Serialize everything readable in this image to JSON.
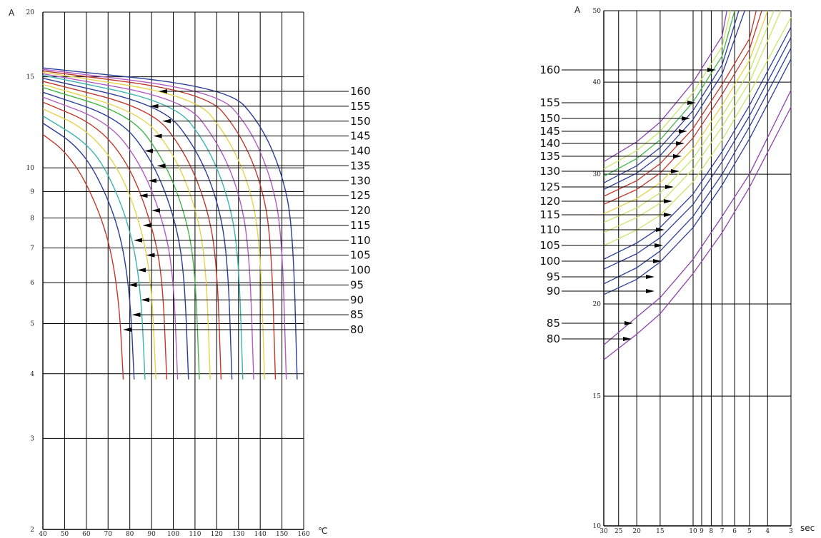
{
  "chart_data": [
    {
      "type": "line",
      "title": "",
      "ylabel": "A",
      "xlabel": "℃",
      "y_scale": "log",
      "ylim": [
        2,
        20
      ],
      "xlim": [
        40,
        160
      ],
      "y_ticks": [
        "2",
        "3",
        "4",
        "5",
        "6",
        "7",
        "8",
        "9",
        "10",
        "15",
        "20"
      ],
      "x_ticks": [
        "40",
        "50",
        "60",
        "70",
        "80",
        "90",
        "100",
        "110",
        "120",
        "130",
        "140",
        "150",
        "160"
      ],
      "grid": true,
      "series": [
        {
          "name": "80",
          "color": "#c0392b",
          "values": [
            [
              40,
              11.6
            ],
            [
              50,
              10.8
            ],
            [
              60,
              9.4
            ],
            [
              70,
              7.4
            ],
            [
              75,
              5.6
            ],
            [
              77,
              3.9
            ]
          ]
        },
        {
          "name": "85",
          "color": "#2c3e99",
          "values": [
            [
              40,
              12.2
            ],
            [
              55,
              11.1
            ],
            [
              65,
              9.7
            ],
            [
              75,
              7.7
            ],
            [
              80,
              5.8
            ],
            [
              82,
              3.9
            ]
          ]
        },
        {
          "name": "90",
          "color": "#3ab5b0",
          "values": [
            [
              40,
              12.6
            ],
            [
              60,
              11.2
            ],
            [
              70,
              9.8
            ],
            [
              80,
              7.7
            ],
            [
              85,
              5.9
            ],
            [
              87,
              3.9
            ]
          ]
        },
        {
          "name": "95",
          "color": "#e6d34a",
          "values": [
            [
              40,
              13.0
            ],
            [
              60,
              11.9
            ],
            [
              75,
              10.0
            ],
            [
              85,
              7.8
            ],
            [
              90,
              6.0
            ],
            [
              92,
              3.9
            ]
          ]
        },
        {
          "name": "100",
          "color": "#c0392b",
          "values": [
            [
              40,
              13.4
            ],
            [
              65,
              12.1
            ],
            [
              80,
              10.1
            ],
            [
              90,
              7.8
            ],
            [
              95,
              6.2
            ],
            [
              97,
              3.9
            ]
          ]
        },
        {
          "name": "105",
          "color": "#b05cc4",
          "values": [
            [
              40,
              13.7
            ],
            [
              70,
              12.3
            ],
            [
              85,
              10.2
            ],
            [
              95,
              8.0
            ],
            [
              100,
              6.3
            ],
            [
              102,
              3.9
            ]
          ]
        },
        {
          "name": "110",
          "color": "#2c3e99",
          "values": [
            [
              40,
              14.0
            ],
            [
              75,
              12.5
            ],
            [
              90,
              10.4
            ],
            [
              100,
              8.2
            ],
            [
              105,
              6.4
            ],
            [
              107,
              3.9
            ]
          ]
        },
        {
          "name": "115",
          "color": "#43b649",
          "values": [
            [
              40,
              14.3
            ],
            [
              80,
              12.7
            ],
            [
              95,
              10.5
            ],
            [
              105,
              8.3
            ],
            [
              110,
              6.5
            ],
            [
              112,
              3.9
            ]
          ]
        },
        {
          "name": "120",
          "color": "#e6d34a",
          "values": [
            [
              40,
              14.5
            ],
            [
              85,
              12.8
            ],
            [
              100,
              10.7
            ],
            [
              110,
              8.5
            ],
            [
              115,
              6.6
            ],
            [
              117,
              3.9
            ]
          ]
        },
        {
          "name": "125",
          "color": "#c0392b",
          "values": [
            [
              40,
              14.7
            ],
            [
              90,
              13.0
            ],
            [
              105,
              10.8
            ],
            [
              115,
              8.6
            ],
            [
              120,
              6.7
            ],
            [
              122,
              3.9
            ]
          ]
        },
        {
          "name": "130",
          "color": "#2c3e99",
          "values": [
            [
              40,
              14.9
            ],
            [
              95,
              13.2
            ],
            [
              110,
              11.0
            ],
            [
              120,
              8.8
            ],
            [
              125,
              6.8
            ],
            [
              127,
              3.9
            ]
          ]
        },
        {
          "name": "135",
          "color": "#3ab5b0",
          "values": [
            [
              40,
              15.1
            ],
            [
              100,
              13.4
            ],
            [
              115,
              11.2
            ],
            [
              125,
              8.9
            ],
            [
              130,
              6.9
            ],
            [
              132,
              3.9
            ]
          ]
        },
        {
          "name": "140",
          "color": "#b05cc4",
          "values": [
            [
              40,
              15.2
            ],
            [
              105,
              13.6
            ],
            [
              120,
              11.3
            ],
            [
              130,
              9.1
            ],
            [
              135,
              7.0
            ],
            [
              137,
              3.9
            ]
          ]
        },
        {
          "name": "145",
          "color": "#e6d34a",
          "values": [
            [
              40,
              15.3
            ],
            [
              110,
              13.8
            ],
            [
              125,
              11.5
            ],
            [
              135,
              9.3
            ],
            [
              140,
              7.2
            ],
            [
              142,
              3.9
            ]
          ]
        },
        {
          "name": "150",
          "color": "#c0392b",
          "values": [
            [
              40,
              15.4
            ],
            [
              115,
              14.0
            ],
            [
              130,
              11.8
            ],
            [
              140,
              9.5
            ],
            [
              145,
              7.4
            ],
            [
              147,
              3.9
            ]
          ]
        },
        {
          "name": "155",
          "color": "#b05cc4",
          "values": [
            [
              40,
              15.5
            ],
            [
              120,
              14.1
            ],
            [
              135,
              12.0
            ],
            [
              145,
              9.6
            ],
            [
              150,
              7.5
            ],
            [
              152,
              3.9
            ]
          ]
        },
        {
          "name": "160",
          "color": "#2c3e99",
          "values": [
            [
              40,
              15.6
            ],
            [
              125,
              14.3
            ],
            [
              140,
              12.2
            ],
            [
              150,
              9.8
            ],
            [
              155,
              7.7
            ],
            [
              157,
              3.9
            ]
          ]
        }
      ]
    },
    {
      "type": "line",
      "title": "",
      "ylabel": "A",
      "xlabel": "sec",
      "y_scale": "log",
      "x_scale": "log",
      "x_reversed": true,
      "ylim": [
        10,
        50
      ],
      "xlim": [
        30,
        3
      ],
      "y_ticks": [
        "10",
        "15",
        "20",
        "30",
        "40",
        "50"
      ],
      "x_ticks": [
        "30",
        "25",
        "20",
        "15",
        "10",
        "9",
        "8",
        "7",
        "6",
        "5",
        "4",
        "3"
      ],
      "grid": true,
      "series": [
        {
          "name": "80",
          "color": "#8e44ad",
          "values": [
            [
              30,
              16.8
            ],
            [
              20,
              18.2
            ],
            [
              15,
              19.4
            ],
            [
              10,
              22.0
            ],
            [
              7,
              25.0
            ],
            [
              5,
              28.8
            ],
            [
              3,
              37.0
            ]
          ]
        },
        {
          "name": "85",
          "color": "#8e44ad",
          "values": [
            [
              30,
              17.6
            ],
            [
              20,
              19.2
            ],
            [
              15,
              20.4
            ],
            [
              10,
              23.0
            ],
            [
              7,
              26.3
            ],
            [
              5,
              30.0
            ],
            [
              3,
              39.0
            ]
          ]
        },
        {
          "name": "90",
          "color": "#2c3e99",
          "values": [
            [
              30,
              20.6
            ],
            [
              20,
              21.6
            ],
            [
              15,
              22.8
            ],
            [
              10,
              25.4
            ],
            [
              7,
              29.0
            ],
            [
              5,
              33.5
            ],
            [
              3,
              43.0
            ]
          ]
        },
        {
          "name": "95",
          "color": "#2c3e99",
          "values": [
            [
              30,
              21.3
            ],
            [
              20,
              22.4
            ],
            [
              15,
              23.6
            ],
            [
              10,
              26.3
            ],
            [
              7,
              30.0
            ],
            [
              5,
              34.8
            ],
            [
              3,
              44.5
            ]
          ]
        },
        {
          "name": "100",
          "color": "#2c3e99",
          "values": [
            [
              30,
              22.3
            ],
            [
              20,
              23.4
            ],
            [
              15,
              24.6
            ],
            [
              10,
              27.3
            ],
            [
              7,
              31.2
            ],
            [
              5,
              36.0
            ],
            [
              3,
              46.0
            ]
          ]
        },
        {
          "name": "105",
          "color": "#2c3e99",
          "values": [
            [
              30,
              23.0
            ],
            [
              20,
              24.2
            ],
            [
              15,
              25.4
            ],
            [
              10,
              28.2
            ],
            [
              7,
              32.2
            ],
            [
              5,
              37.2
            ],
            [
              3,
              47.5
            ]
          ]
        },
        {
          "name": "110",
          "color": "#c7e86a",
          "values": [
            [
              30,
              24.0
            ],
            [
              20,
              25.2
            ],
            [
              15,
              26.4
            ],
            [
              10,
              29.3
            ],
            [
              7,
              33.4
            ],
            [
              5,
              38.6
            ],
            [
              3,
              49.0
            ]
          ]
        },
        {
          "name": "115",
          "color": "#c7e86a",
          "values": [
            [
              30,
              25.0
            ],
            [
              20,
              26.2
            ],
            [
              15,
              27.4
            ],
            [
              10,
              30.5
            ],
            [
              7,
              34.8
            ],
            [
              5,
              40.0
            ],
            [
              3.4,
              50.0
            ]
          ]
        },
        {
          "name": "120",
          "color": "#c7e86a",
          "values": [
            [
              30,
              25.8
            ],
            [
              20,
              27.0
            ],
            [
              15,
              28.3
            ],
            [
              10,
              31.5
            ],
            [
              7,
              36.0
            ],
            [
              5,
              41.4
            ],
            [
              3.7,
              50.0
            ]
          ]
        },
        {
          "name": "125",
          "color": "#e6d34a",
          "values": [
            [
              30,
              26.5
            ],
            [
              20,
              27.8
            ],
            [
              15,
              29.2
            ],
            [
              10,
              32.5
            ],
            [
              7,
              37.2
            ],
            [
              5,
              42.8
            ],
            [
              4.0,
              50.0
            ]
          ]
        },
        {
          "name": "130",
          "color": "#c0392b",
          "values": [
            [
              30,
              27.3
            ],
            [
              20,
              28.6
            ],
            [
              15,
              30.1
            ],
            [
              10,
              33.6
            ],
            [
              7,
              38.5
            ],
            [
              5,
              44.3
            ],
            [
              4.3,
              50.0
            ]
          ]
        },
        {
          "name": "135",
          "color": "#c0392b",
          "values": [
            [
              30,
              28.0
            ],
            [
              20,
              29.4
            ],
            [
              15,
              31.0
            ],
            [
              10,
              34.6
            ],
            [
              7,
              39.7
            ],
            [
              5,
              45.8
            ],
            [
              4.6,
              50.0
            ]
          ]
        },
        {
          "name": "140",
          "color": "#2c3e99",
          "values": [
            [
              30,
              28.6
            ],
            [
              20,
              30.1
            ],
            [
              15,
              31.8
            ],
            [
              10,
              35.6
            ],
            [
              7,
              41.0
            ],
            [
              5.3,
              50.0
            ]
          ]
        },
        {
          "name": "145",
          "color": "#2c3e99",
          "values": [
            [
              30,
              29.2
            ],
            [
              20,
              30.8
            ],
            [
              15,
              32.6
            ],
            [
              10,
              36.6
            ],
            [
              7,
              42.2
            ],
            [
              5.7,
              50.0
            ]
          ]
        },
        {
          "name": "150",
          "color": "#43b649",
          "values": [
            [
              30,
              29.8
            ],
            [
              20,
              31.5
            ],
            [
              15,
              33.4
            ],
            [
              10,
              37.6
            ],
            [
              7,
              43.4
            ],
            [
              6.0,
              50.0
            ]
          ]
        },
        {
          "name": "155",
          "color": "#c7e86a",
          "values": [
            [
              30,
              30.5
            ],
            [
              20,
              32.3
            ],
            [
              15,
              34.3
            ],
            [
              10,
              38.7
            ],
            [
              7,
              44.7
            ],
            [
              6.3,
              50.0
            ]
          ]
        },
        {
          "name": "160",
          "color": "#8e44ad",
          "values": [
            [
              30,
              31.2
            ],
            [
              20,
              33.2
            ],
            [
              15,
              35.3
            ],
            [
              10,
              40.0
            ],
            [
              7,
              46.2
            ],
            [
              6.6,
              50.0
            ]
          ]
        }
      ]
    }
  ]
}
